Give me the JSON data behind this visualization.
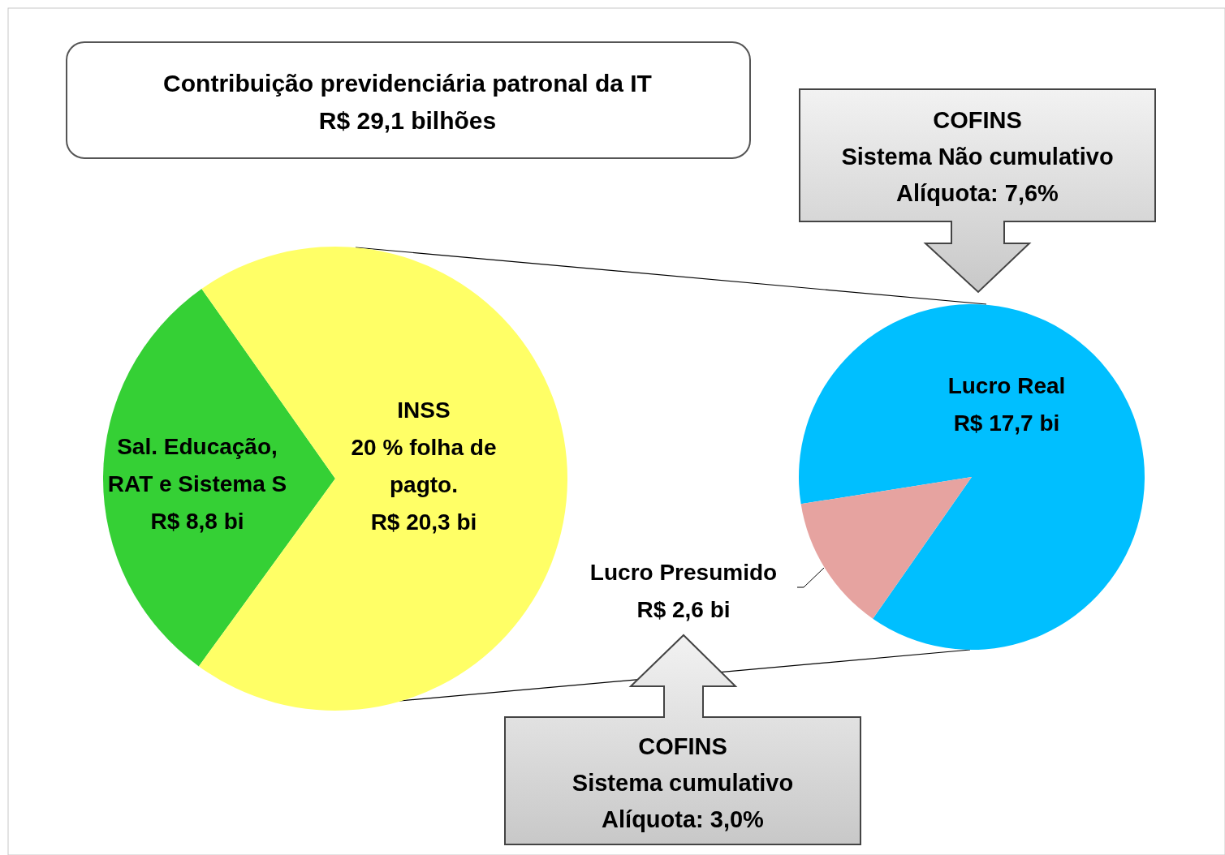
{
  "chart_data": [
    {
      "type": "pie",
      "title": "Contribuição previdenciária patronal da IT\nR$ 29,1 bilhões",
      "categories": [
        "Sal. Educação,\nRAT e Sistema S",
        "INSS\n20 % folha de\npagto."
      ],
      "values": [
        8.8,
        20.3
      ],
      "colors": [
        "#35d035",
        "#ffff66"
      ],
      "value_labels": [
        "R$ 8,8 bi",
        "R$ 20,3 bi"
      ]
    },
    {
      "type": "pie",
      "categories": [
        "Lucro Real",
        "Lucro Presumido"
      ],
      "values": [
        17.7,
        2.6
      ],
      "colors": [
        "#00bfff",
        "#e6a3a0"
      ],
      "value_labels": [
        "R$ 17,7 bi",
        "R$ 2,6 bi"
      ],
      "annotations": [
        "COFINS\nSistema Não cumulativo\nAlíquota: 7,6%",
        "COFINS\nSistema cumulativo\nAlíquota: 3,0%"
      ]
    }
  ]
}
